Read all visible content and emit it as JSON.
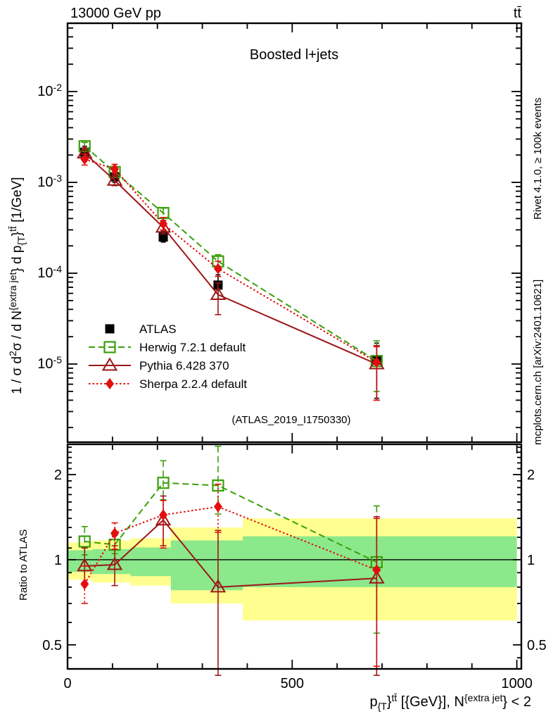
{
  "header": {
    "left_title": "13000 GeV pp",
    "right_title": "tt̄"
  },
  "side_notes": {
    "top": "Rivet 4.1.0, ≥ 100k events",
    "bottom": "mcplots.cern.ch [arXiv:2401.10621]"
  },
  "chart_data": {
    "type": "line",
    "title": "Boosted l+jets",
    "watermark": "(ATLAS_2019_I1750330)",
    "xlabel": "p_{T}^{ttbar} [GeV], N^{extra jet} < 2",
    "ylabel": "1 / σ d²σ / d N^{extra jet} d p_{T}^{ttbar} [1/GeV]",
    "ratio_label": "Ratio to ATLAS",
    "xlabel_rich": [
      {
        "t": "p",
        "s": "n"
      },
      {
        "t": "{T",
        "s": "sub"
      },
      {
        "t": "}",
        "s": "n"
      },
      {
        "t": "tt̄",
        "s": "sup"
      },
      {
        "t": " [{GeV}], N",
        "s": "n"
      },
      {
        "t": "{extra jet",
        "s": "sup"
      },
      {
        "t": "} < 2",
        "s": "n"
      }
    ],
    "ylabel_rich": [
      {
        "t": "1 / σ d",
        "s": "n"
      },
      {
        "t": "2",
        "s": "sup"
      },
      {
        "t": "σ / d N",
        "s": "n"
      },
      {
        "t": "{extra jet",
        "s": "sup"
      },
      {
        "t": "} d p",
        "s": "n"
      },
      {
        "t": "{T",
        "s": "sub"
      },
      {
        "t": "}",
        "s": "n"
      },
      {
        "t": "tt̄",
        "s": "sup"
      },
      {
        "t": " [1/GeV]",
        "s": "n"
      }
    ],
    "x_range": [
      0,
      1010
    ],
    "x_major_ticks": [
      0,
      500,
      1000
    ],
    "x_minor_step": 100,
    "y_range": [
      1.38e-06,
      0.0565
    ],
    "y_major_ticks": [
      {
        "value": 0.01,
        "exp": "-2"
      },
      {
        "value": 0.001,
        "exp": "-3"
      },
      {
        "value": 0.0001,
        "exp": "-4"
      },
      {
        "value": 1e-05,
        "exp": "-5"
      }
    ],
    "ratio_range": [
      0.411,
      2.56
    ],
    "ratio_major_ticks": [
      {
        "value": 0.5,
        "label": "0.5"
      },
      {
        "value": 1,
        "label": "1"
      },
      {
        "value": 2,
        "label": "2"
      }
    ],
    "x": [
      38,
      105,
      213,
      335,
      688
    ],
    "series": [
      {
        "name": "ATLAS",
        "color": "#000000",
        "marker": "square-filled",
        "line": "none",
        "y": [
          0.00215,
          0.00115,
          0.00025,
          7.4e-05,
          1.1e-05
        ],
        "y_err": [
          [
            0.00185,
            0.0025
          ],
          [
            0.001,
            0.00133
          ],
          [
            0.00022,
            0.00029
          ],
          [
            5.2e-05,
            9.6e-05
          ],
          [
            4.2e-06,
            1.7e-05
          ]
        ],
        "ratio": null,
        "ratio_err": null
      },
      {
        "name": "Herwig 7.2.1 default",
        "color": "#3aa00a",
        "marker": "square-open",
        "line": "dashed",
        "y": [
          0.0025,
          0.0013,
          0.00046,
          0.000135,
          1.08e-05
        ],
        "y_err": [
          [
            0.0023,
            0.00275
          ],
          [
            0.0012,
            0.00142
          ],
          [
            0.00041,
            0.00052
          ],
          [
            0.000115,
            0.00016
          ],
          [
            5e-06,
            1.8e-05
          ]
        ],
        "ratio": [
          1.16,
          1.13,
          1.87,
          1.83,
          0.98
        ],
        "ratio_err": [
          [
            1.04,
            1.31
          ],
          [
            1.05,
            1.22
          ],
          [
            1.63,
            2.24
          ],
          [
            1.45,
            2.52
          ],
          [
            0.55,
            1.55
          ]
        ]
      },
      {
        "name": "Pythia 6.428 370",
        "color": "#9c1717",
        "marker": "triangle-open",
        "line": "solid",
        "y": [
          0.0021,
          0.00105,
          0.00032,
          5.8e-05,
          1e-05
        ],
        "y_err": [
          [
            0.00185,
            0.00235
          ],
          [
            0.00092,
            0.0012
          ],
          [
            0.00027,
            0.00038
          ],
          [
            3.5e-05,
            7.8e-05
          ],
          [
            4e-06,
            1.6e-05
          ]
        ],
        "ratio": [
          0.95,
          0.96,
          1.38,
          0.8,
          0.86
        ],
        "ratio_err": [
          [
            0.83,
            1.1
          ],
          [
            0.81,
            1.12
          ],
          [
            1.12,
            1.68
          ],
          [
            0.39,
            1.27
          ],
          [
            0.39,
            1.42
          ]
        ]
      },
      {
        "name": "Sherpa 2.2.4 default",
        "color": "#e30d0d",
        "marker": "diamond-filled",
        "line": "dotted",
        "y": [
          0.0018,
          0.0014,
          0.00035,
          0.000112,
          1.05e-05
        ],
        "y_err": [
          [
            0.00155,
            0.00205
          ],
          [
            0.00125,
            0.00158
          ],
          [
            0.0003,
            0.00041
          ],
          [
            9.2e-05,
            0.000135
          ],
          [
            4e-06,
            1.55e-05
          ]
        ],
        "ratio": [
          0.82,
          1.24,
          1.44,
          1.54,
          0.92
        ],
        "ratio_err": [
          [
            0.7,
            0.95
          ],
          [
            1.09,
            1.35
          ],
          [
            1.1,
            1.62
          ],
          [
            1.25,
            1.85
          ],
          [
            0.42,
            1.4
          ]
        ]
      }
    ],
    "bands": {
      "bin_edges": [
        0,
        55,
        140,
        230,
        390,
        1000
      ],
      "yellow": {
        "color": "#ffff8f",
        "ranges": [
          [
            0.85,
            1.15
          ],
          [
            0.83,
            1.17
          ],
          [
            0.81,
            1.19
          ],
          [
            0.7,
            1.3
          ],
          [
            0.61,
            1.4
          ]
        ]
      },
      "green": {
        "color": "#8be88b",
        "ranges": [
          [
            0.905,
            1.08
          ],
          [
            0.89,
            1.09
          ],
          [
            0.875,
            1.105
          ],
          [
            0.78,
            1.17
          ],
          [
            0.8,
            1.21
          ]
        ]
      }
    },
    "legend_position": "bottom-left-of-main-panel",
    "grid": false
  }
}
